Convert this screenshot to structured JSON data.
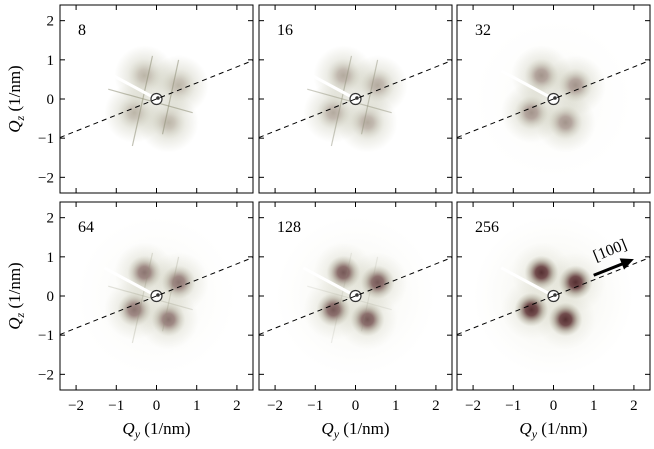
{
  "chart_data": {
    "type": "heatmap",
    "x_axis": {
      "symbol": "Q",
      "subscript": "y",
      "unit": "(1/nm)",
      "lim": [
        -2.4,
        2.4
      ],
      "ticks": [
        -2,
        -1,
        0,
        1,
        2
      ]
    },
    "y_axis": {
      "symbol": "Q",
      "subscript": "z",
      "unit": "(1/nm)",
      "lim": [
        -2.4,
        2.4
      ],
      "ticks": [
        -2,
        -1,
        0,
        1,
        2
      ]
    },
    "panels": [
      {
        "label": "8",
        "intensity": 0.14,
        "streak_strength": 0.55
      },
      {
        "label": "16",
        "intensity": 0.22,
        "streak_strength": 0.45
      },
      {
        "label": "32",
        "intensity": 0.36,
        "streak_strength": 0.0
      },
      {
        "label": "64",
        "intensity": 0.55,
        "streak_strength": 0.25
      },
      {
        "label": "128",
        "intensity": 0.72,
        "streak_strength": 0.15
      },
      {
        "label": "256",
        "intensity": 0.95,
        "streak_strength": 0.0
      }
    ],
    "peaks": [
      [
        -0.3,
        0.6
      ],
      [
        0.55,
        0.35
      ],
      [
        -0.55,
        -0.35
      ],
      [
        0.3,
        -0.6
      ]
    ],
    "direction_line": {
      "slope": 0.41,
      "style": "dashed"
    },
    "direction_label": "[100]",
    "grid": false
  },
  "colors": {
    "peak": "#5a2f30",
    "halo": "#8a8a62",
    "background": "#ffffff"
  }
}
